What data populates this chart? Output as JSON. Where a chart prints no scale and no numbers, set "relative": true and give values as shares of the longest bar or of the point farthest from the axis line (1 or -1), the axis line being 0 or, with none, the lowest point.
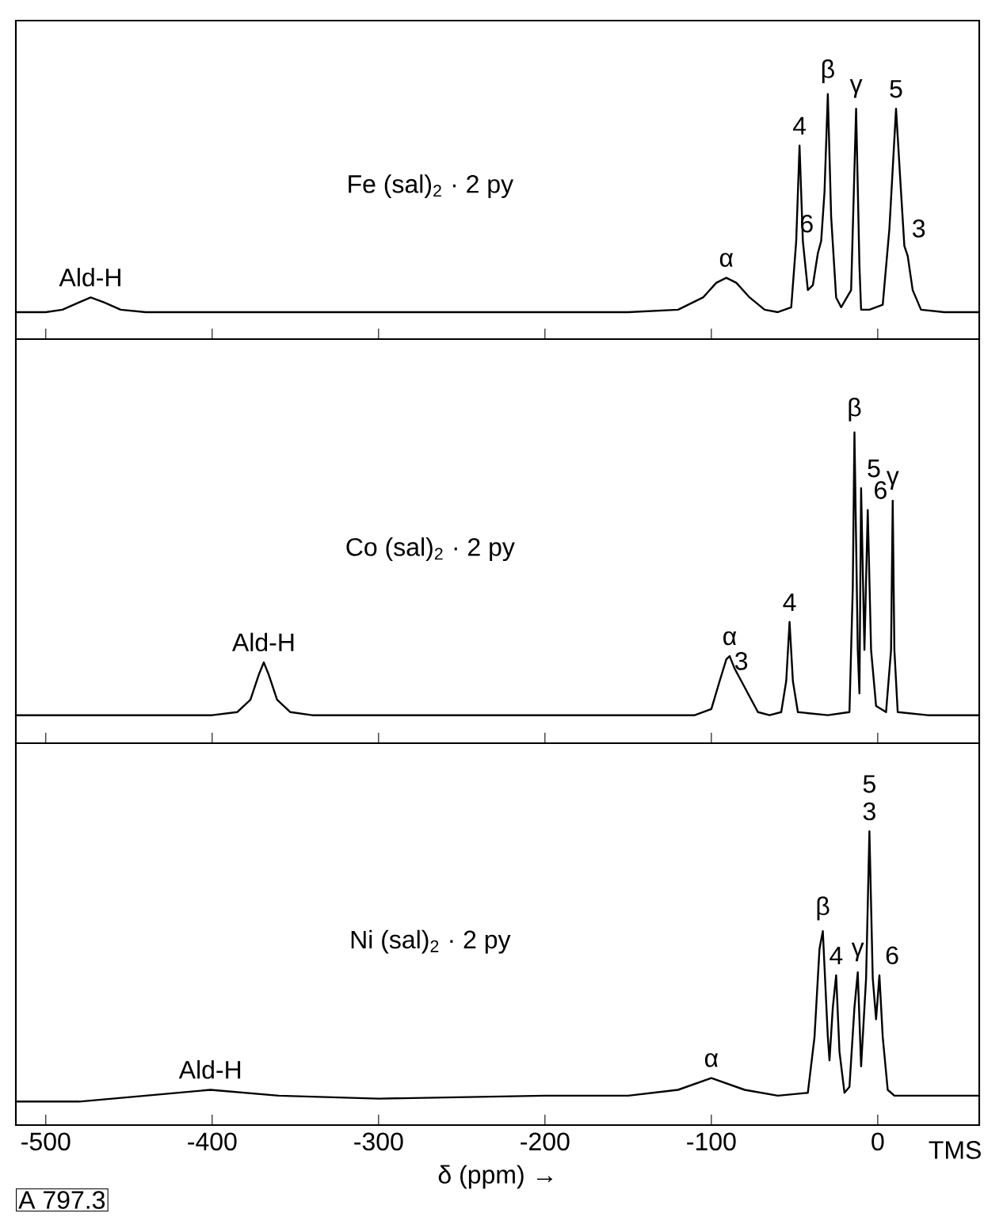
{
  "chart_data": [
    {
      "type": "line",
      "relative": true,
      "color": "#000000",
      "xlim": [
        -518,
        61
      ],
      "xticks": [
        -500,
        -400,
        -300,
        -200,
        -100,
        0
      ],
      "tick_labels": false,
      "x": [
        -518,
        -500,
        -490,
        -480,
        -473,
        -465,
        -455,
        -440,
        -300,
        -150,
        -120,
        -105,
        -97,
        -91,
        -85,
        -77,
        -68,
        -60,
        -52,
        -49,
        -47,
        -45,
        -42,
        -39,
        -36,
        -34,
        -32,
        -30,
        -28,
        -25,
        -22,
        -16,
        -13,
        -11,
        -10,
        -5,
        3,
        7,
        11,
        14,
        16,
        18,
        21,
        26,
        40,
        61
      ],
      "values": [
        0.11,
        0.11,
        0.12,
        0.15,
        0.17,
        0.15,
        0.12,
        0.11,
        0.11,
        0.11,
        0.12,
        0.17,
        0.23,
        0.25,
        0.23,
        0.17,
        0.12,
        0.11,
        0.13,
        0.4,
        0.79,
        0.4,
        0.2,
        0.22,
        0.35,
        0.4,
        0.6,
        1.0,
        0.5,
        0.17,
        0.13,
        0.2,
        0.94,
        0.3,
        0.12,
        0.12,
        0.14,
        0.45,
        0.94,
        0.6,
        0.38,
        0.34,
        0.2,
        0.12,
        0.11,
        0.11
      ],
      "annotations": [
        "Fe (sal)$_{2}$ · 2 py",
        {
          "text": "Ald-H",
          "x": -473,
          "y": 0.17
        },
        {
          "text": "α",
          "x": -91,
          "y": 0.25
        },
        {
          "text": "4",
          "x": -47,
          "y": 0.79
        },
        {
          "text": "6",
          "x": -35,
          "y": 0.39
        },
        {
          "text": "β",
          "x": -30,
          "y": 1.0
        },
        {
          "text": "γ",
          "x": -13,
          "y": 0.94
        },
        {
          "text": "5",
          "x": 11,
          "y": 0.94
        },
        {
          "text": "3",
          "x": 17,
          "y": 0.37
        }
      ]
    },
    {
      "type": "line",
      "relative": true,
      "color": "#000000",
      "xlim": [
        -518,
        61
      ],
      "xticks": [
        -500,
        -400,
        -300,
        -200,
        -100,
        0
      ],
      "tick_labels": false,
      "x": [
        -518,
        -400,
        -385,
        -377,
        -372,
        -369,
        -366,
        -361,
        -353,
        -340,
        -110,
        -100,
        -95,
        -91,
        -89,
        -86,
        -82,
        -78,
        -72,
        -65,
        -58,
        -55,
        -53,
        -51,
        -48,
        -30,
        -17,
        -15,
        -14,
        -12,
        -11,
        -10,
        -8,
        -6,
        -4,
        -1,
        5,
        8,
        9,
        10,
        12,
        30,
        61
      ],
      "values": [
        0.09,
        0.09,
        0.1,
        0.14,
        0.22,
        0.26,
        0.22,
        0.14,
        0.1,
        0.09,
        0.09,
        0.11,
        0.2,
        0.27,
        0.28,
        0.24,
        0.2,
        0.16,
        0.1,
        0.09,
        0.1,
        0.2,
        0.39,
        0.2,
        0.1,
        0.09,
        0.1,
        0.5,
        1.0,
        0.3,
        0.16,
        0.82,
        0.3,
        0.75,
        0.3,
        0.12,
        0.1,
        0.3,
        0.78,
        0.3,
        0.1,
        0.09,
        0.09
      ],
      "annotations": [
        "Co (sal)$_{2}$ · 2 py",
        {
          "text": "Ald-H",
          "x": -369,
          "y": 0.26
        },
        {
          "text": "α",
          "x": -89,
          "y": 0.28
        },
        {
          "text": "3",
          "x": -82,
          "y": 0.2
        },
        {
          "text": "4",
          "x": -53,
          "y": 0.39
        },
        {
          "text": "β",
          "x": -14,
          "y": 1.0
        },
        {
          "text": "5",
          "x": -10,
          "y": 0.82
        },
        {
          "text": "6",
          "x": -6,
          "y": 0.75
        },
        {
          "text": "γ",
          "x": 9,
          "y": 0.78
        }
      ]
    },
    {
      "type": "line",
      "relative": true,
      "color": "#000000",
      "xlim": [
        -518,
        61
      ],
      "xticks": [
        -500,
        -400,
        -300,
        -200,
        -100,
        0
      ],
      "tick_labels": "x",
      "xlabel": "δ (ppm) →",
      "x": [
        -518,
        -480,
        -440,
        -401,
        -360,
        -300,
        -200,
        -150,
        -120,
        -100,
        -80,
        -60,
        -42,
        -38,
        -35,
        -33,
        -30,
        -29,
        -27,
        -25,
        -23,
        -20,
        -17,
        -14,
        -12,
        -10,
        -7,
        -5,
        -3,
        -1,
        1,
        3,
        6,
        10,
        61
      ],
      "values": [
        0.08,
        0.08,
        0.1,
        0.12,
        0.1,
        0.09,
        0.1,
        0.1,
        0.12,
        0.16,
        0.12,
        0.1,
        0.11,
        0.3,
        0.6,
        0.66,
        0.3,
        0.22,
        0.4,
        0.51,
        0.25,
        0.11,
        0.13,
        0.4,
        0.52,
        0.2,
        0.5,
        1.0,
        0.5,
        0.36,
        0.51,
        0.3,
        0.12,
        0.1,
        0.1
      ],
      "annotations": [
        "Ni (sal)$_{2}$ · 2 py",
        "TMS",
        "A 797.3",
        {
          "text": "Ald-H",
          "x": -401,
          "y": 0.12
        },
        {
          "text": "α",
          "x": -100,
          "y": 0.16
        },
        {
          "text": "β",
          "x": -33,
          "y": 0.66
        },
        {
          "text": "4",
          "x": -25,
          "y": 0.51
        },
        {
          "text": "γ",
          "x": -12,
          "y": 0.52
        },
        {
          "text": "3",
          "x": -5,
          "y": 1.0
        },
        {
          "text": "5",
          "x": -5,
          "y": 1.0
        },
        {
          "text": "6",
          "x": 1,
          "y": 0.51
        }
      ]
    }
  ]
}
